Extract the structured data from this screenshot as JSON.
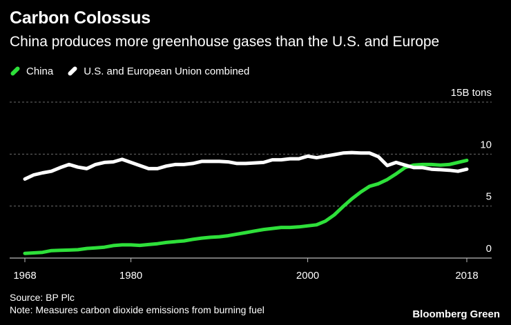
{
  "title": "Carbon Colossus",
  "subtitle": "China produces more greenhouse gases than the U.S. and Europe",
  "source": "Source: BP Plc",
  "note": "Note: Measures carbon dioxide emissions from burning fuel",
  "brand": "Bloomberg Green",
  "colors": {
    "china": "#2ee03a",
    "us_eu": "#ffffff",
    "grid": "#6e6e6e",
    "background": "#000000"
  },
  "legend": [
    {
      "label": "China",
      "color": "#2ee03a"
    },
    {
      "label": "U.S. and European Union combined",
      "color": "#ffffff"
    }
  ],
  "chart_data": {
    "type": "line",
    "title": "Carbon Colossus",
    "subtitle": "China produces more greenhouse gases than the U.S. and Europe",
    "xlim": [
      1968,
      2018
    ],
    "ylim": [
      0,
      15
    ],
    "x_ticks": [
      1968,
      1980,
      2000,
      2018
    ],
    "y_ticks": [
      {
        "value": 0,
        "label": "0"
      },
      {
        "value": 5,
        "label": "5"
      },
      {
        "value": 10,
        "label": "10"
      },
      {
        "value": 15,
        "label": "15B tons"
      }
    ],
    "grid": true,
    "legend_position": "top-left",
    "x": [
      1968,
      1969,
      1970,
      1971,
      1972,
      1973,
      1974,
      1975,
      1976,
      1977,
      1978,
      1979,
      1980,
      1981,
      1982,
      1983,
      1984,
      1985,
      1986,
      1987,
      1988,
      1989,
      1990,
      1991,
      1992,
      1993,
      1994,
      1995,
      1996,
      1997,
      1998,
      1999,
      2000,
      2001,
      2002,
      2003,
      2004,
      2005,
      2006,
      2007,
      2008,
      2009,
      2010,
      2011,
      2012,
      2013,
      2014,
      2015,
      2016,
      2017,
      2018
    ],
    "series": [
      {
        "name": "China",
        "color": "#2ee03a",
        "values": [
          0.45,
          0.5,
          0.55,
          0.72,
          0.75,
          0.77,
          0.8,
          0.92,
          0.98,
          1.05,
          1.2,
          1.27,
          1.27,
          1.22,
          1.3,
          1.38,
          1.5,
          1.58,
          1.65,
          1.8,
          1.92,
          2.0,
          2.05,
          2.15,
          2.3,
          2.45,
          2.6,
          2.75,
          2.85,
          2.95,
          2.95,
          3.0,
          3.1,
          3.2,
          3.55,
          4.15,
          4.95,
          5.7,
          6.35,
          6.9,
          7.15,
          7.55,
          8.1,
          8.7,
          8.95,
          9.0,
          9.0,
          8.95,
          9.0,
          9.2,
          9.4
        ]
      },
      {
        "name": "U.S. and European Union combined",
        "color": "#ffffff",
        "values": [
          7.6,
          8.0,
          8.2,
          8.35,
          8.7,
          9.0,
          8.75,
          8.6,
          9.0,
          9.2,
          9.25,
          9.5,
          9.2,
          8.9,
          8.6,
          8.6,
          8.85,
          9.0,
          9.0,
          9.1,
          9.3,
          9.3,
          9.3,
          9.25,
          9.1,
          9.1,
          9.15,
          9.2,
          9.45,
          9.45,
          9.55,
          9.55,
          9.8,
          9.65,
          9.8,
          9.95,
          10.1,
          10.15,
          10.1,
          10.1,
          9.75,
          8.9,
          9.2,
          8.95,
          8.7,
          8.7,
          8.55,
          8.5,
          8.45,
          8.35,
          8.55
        ]
      }
    ]
  }
}
